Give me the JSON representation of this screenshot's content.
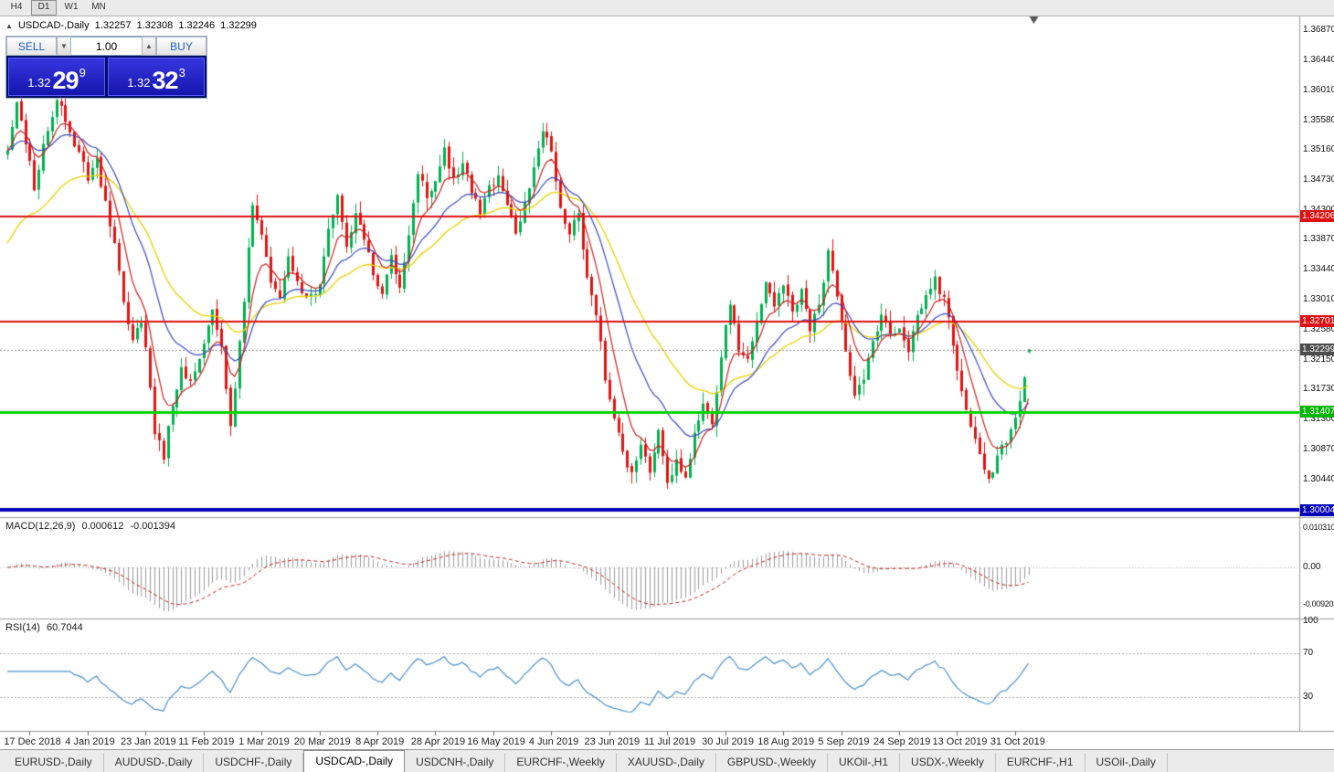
{
  "toolbar": {
    "timeframes": [
      {
        "label": "H4",
        "active": false
      },
      {
        "label": "D1",
        "active": true
      },
      {
        "label": "W1",
        "active": false
      },
      {
        "label": "MN",
        "active": false
      }
    ]
  },
  "chart_header": {
    "collapse_icon": "▲",
    "symbol": "USDCAD-,Daily",
    "open": "1.32257",
    "high": "1.32308",
    "low": "1.32246",
    "close": "1.32299"
  },
  "trade_panel": {
    "sell_label": "SELL",
    "buy_label": "BUY",
    "volume": "1.00",
    "volume_down_icon": "▼",
    "volume_up_icon": "▲",
    "sell_price": {
      "prefix": "1.32",
      "main": "29",
      "pip": "9"
    },
    "buy_price": {
      "prefix": "1.32",
      "main": "32",
      "pip": "3"
    }
  },
  "indicators": {
    "macd": {
      "name": "MACD(12,26,9)",
      "main": "0.000612",
      "signal": "-0.001394",
      "axis": [
        "0.010310",
        "0.00",
        "-0.009203"
      ]
    },
    "rsi": {
      "name": "RSI(14)",
      "value": "60.7044",
      "axis": [
        "100",
        "70",
        "30"
      ]
    }
  },
  "price_axis": {
    "labels": [
      "1.36870",
      "1.36440",
      "1.36010",
      "1.35580",
      "1.35160",
      "1.34730",
      "1.34300",
      "1.33870",
      "1.33440",
      "1.33010",
      "1.32580",
      "1.32150",
      "1.31730",
      "1.31300",
      "1.30870",
      "1.30440"
    ],
    "tags": [
      {
        "name": "resistance-1",
        "value": "1.34206",
        "color": "#dd1111"
      },
      {
        "name": "resistance-2",
        "value": "1.32701",
        "color": "#dd1111"
      },
      {
        "name": "current-price",
        "value": "1.32299",
        "color": "#4d4d4d"
      },
      {
        "name": "support-green",
        "value": "1.31407",
        "color": "#00b400"
      },
      {
        "name": "support-blue",
        "value": "1.30004",
        "color": "#0000bb"
      }
    ]
  },
  "date_axis": [
    {
      "label": "17 Dec 2018",
      "bar": 5
    },
    {
      "label": "4 Jan 2019",
      "bar": 18
    },
    {
      "label": "23 Jan 2019",
      "bar": 31
    },
    {
      "label": "11 Feb 2019",
      "bar": 44
    },
    {
      "label": "1 Mar 2019",
      "bar": 57
    },
    {
      "label": "20 Mar 2019",
      "bar": 70
    },
    {
      "label": "8 Apr 2019",
      "bar": 83
    },
    {
      "label": "28 Apr 2019",
      "bar": 96
    },
    {
      "label": "16 May 2019",
      "bar": 109
    },
    {
      "label": "4 Jun 2019",
      "bar": 122
    },
    {
      "label": "23 Jun 2019",
      "bar": 135
    },
    {
      "label": "11 Jul 2019",
      "bar": 148
    },
    {
      "label": "30 Jul 2019",
      "bar": 161
    },
    {
      "label": "18 Aug 2019",
      "bar": 174
    },
    {
      "label": "5 Sep 2019",
      "bar": 187
    },
    {
      "label": "24 Sep 2019",
      "bar": 200
    },
    {
      "label": "13 Oct 2019",
      "bar": 213
    },
    {
      "label": "31 Oct 2019",
      "bar": 226
    }
  ],
  "tabs": {
    "items": [
      "EURUSD-,Daily",
      "AUDUSD-,Daily",
      "USDCHF-,Daily",
      "USDCAD-,Daily",
      "USDCNH-,Daily",
      "EURCHF-,Weekly",
      "XAUUSD-,Daily",
      "GBPUSD-,Weekly",
      "UKOil-,H1",
      "USDX-,Weekly",
      "EURCHF-,H1",
      "USOil-,Daily"
    ],
    "active": "USDCAD-,Daily"
  },
  "chart_data": {
    "type": "candlestick",
    "symbol": "USDCAD-",
    "timeframe": "Daily",
    "approximate": true,
    "bars": 230,
    "seed": 20191108,
    "colors": {
      "up": "#00b050",
      "down": "#e21212"
    },
    "current_ohlc": {
      "open": 1.32257,
      "high": 1.32308,
      "low": 1.32246,
      "close": 1.32299
    },
    "price_waypoints": [
      [
        0,
        1.352
      ],
      [
        2,
        1.358
      ],
      [
        4,
        1.353
      ],
      [
        6,
        1.3462
      ],
      [
        8,
        1.352
      ],
      [
        11,
        1.359
      ],
      [
        13,
        1.356
      ],
      [
        15,
        1.352
      ],
      [
        18,
        1.3478
      ],
      [
        20,
        1.3498
      ],
      [
        22,
        1.344
      ],
      [
        24,
        1.338
      ],
      [
        26,
        1.33
      ],
      [
        28,
        1.3245
      ],
      [
        30,
        1.3268
      ],
      [
        31,
        1.3228
      ],
      [
        33,
        1.311
      ],
      [
        35,
        1.3078
      ],
      [
        37,
        1.315
      ],
      [
        39,
        1.3208
      ],
      [
        41,
        1.318
      ],
      [
        44,
        1.3235
      ],
      [
        46,
        1.329
      ],
      [
        48,
        1.323
      ],
      [
        50,
        1.312
      ],
      [
        53,
        1.33
      ],
      [
        55,
        1.344
      ],
      [
        57,
        1.339
      ],
      [
        59,
        1.333
      ],
      [
        61,
        1.331
      ],
      [
        63,
        1.3365
      ],
      [
        65,
        1.333
      ],
      [
        67,
        1.33
      ],
      [
        70,
        1.332
      ],
      [
        72,
        1.34
      ],
      [
        74,
        1.345
      ],
      [
        76,
        1.338
      ],
      [
        78,
        1.342
      ],
      [
        80,
        1.339
      ],
      [
        82,
        1.334
      ],
      [
        84,
        1.331
      ],
      [
        86,
        1.336
      ],
      [
        88,
        1.332
      ],
      [
        90,
        1.34
      ],
      [
        92,
        1.348
      ],
      [
        94,
        1.345
      ],
      [
        96,
        1.347
      ],
      [
        98,
        1.352
      ],
      [
        100,
        1.347
      ],
      [
        102,
        1.35
      ],
      [
        104,
        1.346
      ],
      [
        106,
        1.343
      ],
      [
        108,
        1.346
      ],
      [
        110,
        1.348
      ],
      [
        112,
        1.344
      ],
      [
        114,
        1.34
      ],
      [
        116,
        1.344
      ],
      [
        118,
        1.349
      ],
      [
        120,
        1.3548
      ],
      [
        122,
        1.3518
      ],
      [
        124,
        1.343
      ],
      [
        126,
        1.339
      ],
      [
        128,
        1.343
      ],
      [
        130,
        1.333
      ],
      [
        132,
        1.328
      ],
      [
        134,
        1.319
      ],
      [
        136,
        1.313
      ],
      [
        138,
        1.308
      ],
      [
        140,
        1.305
      ],
      [
        142,
        1.3095
      ],
      [
        144,
        1.306
      ],
      [
        146,
        1.311
      ],
      [
        148,
        1.3035
      ],
      [
        150,
        1.307
      ],
      [
        152,
        1.305
      ],
      [
        154,
        1.311
      ],
      [
        156,
        1.315
      ],
      [
        158,
        1.313
      ],
      [
        160,
        1.322
      ],
      [
        162,
        1.33
      ],
      [
        164,
        1.323
      ],
      [
        166,
        1.321
      ],
      [
        168,
        1.327
      ],
      [
        170,
        1.332
      ],
      [
        172,
        1.329
      ],
      [
        174,
        1.332
      ],
      [
        176,
        1.328
      ],
      [
        178,
        1.331
      ],
      [
        180,
        1.326
      ],
      [
        182,
        1.329
      ],
      [
        184,
        1.337
      ],
      [
        186,
        1.331
      ],
      [
        188,
        1.323
      ],
      [
        190,
        1.316
      ],
      [
        192,
        1.319
      ],
      [
        194,
        1.324
      ],
      [
        196,
        1.328
      ],
      [
        198,
        1.325
      ],
      [
        200,
        1.326
      ],
      [
        202,
        1.323
      ],
      [
        204,
        1.328
      ],
      [
        206,
        1.331
      ],
      [
        208,
        1.333
      ],
      [
        210,
        1.33
      ],
      [
        212,
        1.324
      ],
      [
        214,
        1.317
      ],
      [
        216,
        1.312
      ],
      [
        218,
        1.308
      ],
      [
        220,
        1.3045
      ],
      [
        222,
        1.3075
      ],
      [
        224,
        1.31
      ],
      [
        226,
        1.313
      ],
      [
        228,
        1.3185
      ],
      [
        229,
        1.323
      ]
    ],
    "levels": [
      {
        "name": "resistance-1",
        "price": 1.34206,
        "color": "#dd1111",
        "width": 2,
        "style": "solid"
      },
      {
        "name": "resistance-2",
        "price": 1.32701,
        "color": "#dd1111",
        "width": 2,
        "style": "solid"
      },
      {
        "name": "support-green",
        "price": 1.31407,
        "color": "#00d400",
        "width": 3,
        "style": "solid"
      },
      {
        "name": "support-blue",
        "price": 1.30004,
        "color": "#0000bb",
        "width": 4,
        "style": "solid"
      },
      {
        "name": "bid-line",
        "price": 1.32299,
        "color": "#888888",
        "width": 1,
        "style": "dot"
      }
    ],
    "moving_averages": [
      {
        "period": 34,
        "color": "#e8d200",
        "width": 1.3,
        "seed_offset": -0.014
      },
      {
        "period": 18,
        "color": "#3a49c0",
        "width": 1.2,
        "seed_offset": 0
      },
      {
        "period": 7,
        "color": "#cc2020",
        "width": 1.2,
        "seed_offset": 0
      }
    ],
    "macd": {
      "fast": 12,
      "slow": 26,
      "signal": 9,
      "histogram_color": "#9c9c9c",
      "signal_color": "#c22020"
    },
    "rsi": {
      "period": 14,
      "color": "#4a90c8",
      "levels": [
        70,
        30
      ]
    }
  }
}
